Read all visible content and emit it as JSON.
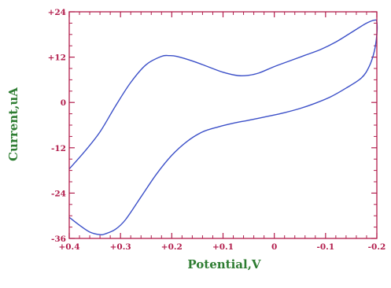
{
  "chart_data": {
    "type": "line",
    "xlabel": "Potential,V",
    "ylabel": "Current,uA",
    "xlim": [
      0.4,
      -0.2
    ],
    "ylim": [
      -36,
      24
    ],
    "x_ticks": [
      0.4,
      0.3,
      0.2,
      0.1,
      0,
      -0.1,
      -0.2
    ],
    "x_tick_labels": [
      "+0.4",
      "+0.3",
      "+0.2",
      "+0.1",
      "0",
      "-0.1",
      "-0.2"
    ],
    "y_ticks": [
      24,
      12,
      0,
      -12,
      -24,
      -36
    ],
    "y_tick_labels": [
      "+24",
      "+12",
      "0",
      "-12",
      "-24",
      "-36"
    ],
    "grid": false,
    "colors": {
      "frame": "#b21d4c",
      "curve": "#3b4fc8",
      "axis_title": "#2e7d32"
    },
    "series": [
      {
        "points": [
          [
            0.4,
            -17.6
          ],
          [
            0.37,
            -13.0
          ],
          [
            0.34,
            -7.8
          ],
          [
            0.31,
            -1.0
          ],
          [
            0.28,
            5.3
          ],
          [
            0.25,
            10.0
          ],
          [
            0.22,
            12.2
          ],
          [
            0.205,
            12.4
          ],
          [
            0.19,
            12.2
          ],
          [
            0.16,
            11.0
          ],
          [
            0.13,
            9.5
          ],
          [
            0.1,
            8.0
          ],
          [
            0.07,
            7.1
          ],
          [
            0.05,
            7.2
          ],
          [
            0.03,
            7.8
          ],
          [
            0.0,
            9.5
          ],
          [
            -0.03,
            11.0
          ],
          [
            -0.06,
            12.5
          ],
          [
            -0.09,
            14.0
          ],
          [
            -0.12,
            16.0
          ],
          [
            -0.15,
            18.5
          ],
          [
            -0.18,
            21.0
          ],
          [
            -0.196,
            21.8
          ],
          [
            -0.2,
            21.3
          ],
          [
            -0.2,
            18.0
          ],
          [
            -0.195,
            13.5
          ],
          [
            -0.185,
            9.5
          ],
          [
            -0.17,
            6.5
          ],
          [
            -0.14,
            3.8
          ],
          [
            -0.11,
            1.5
          ],
          [
            -0.08,
            -0.2
          ],
          [
            -0.05,
            -1.6
          ],
          [
            -0.02,
            -2.7
          ],
          [
            0.01,
            -3.6
          ],
          [
            0.05,
            -4.7
          ],
          [
            0.08,
            -5.5
          ],
          [
            0.11,
            -6.5
          ],
          [
            0.14,
            -7.8
          ],
          [
            0.17,
            -10.3
          ],
          [
            0.2,
            -14.0
          ],
          [
            0.23,
            -19.0
          ],
          [
            0.26,
            -25.0
          ],
          [
            0.29,
            -31.0
          ],
          [
            0.31,
            -33.6
          ],
          [
            0.33,
            -34.8
          ],
          [
            0.34,
            -35.0
          ],
          [
            0.36,
            -34.3
          ],
          [
            0.38,
            -32.5
          ],
          [
            0.4,
            -30.4
          ]
        ]
      }
    ]
  }
}
